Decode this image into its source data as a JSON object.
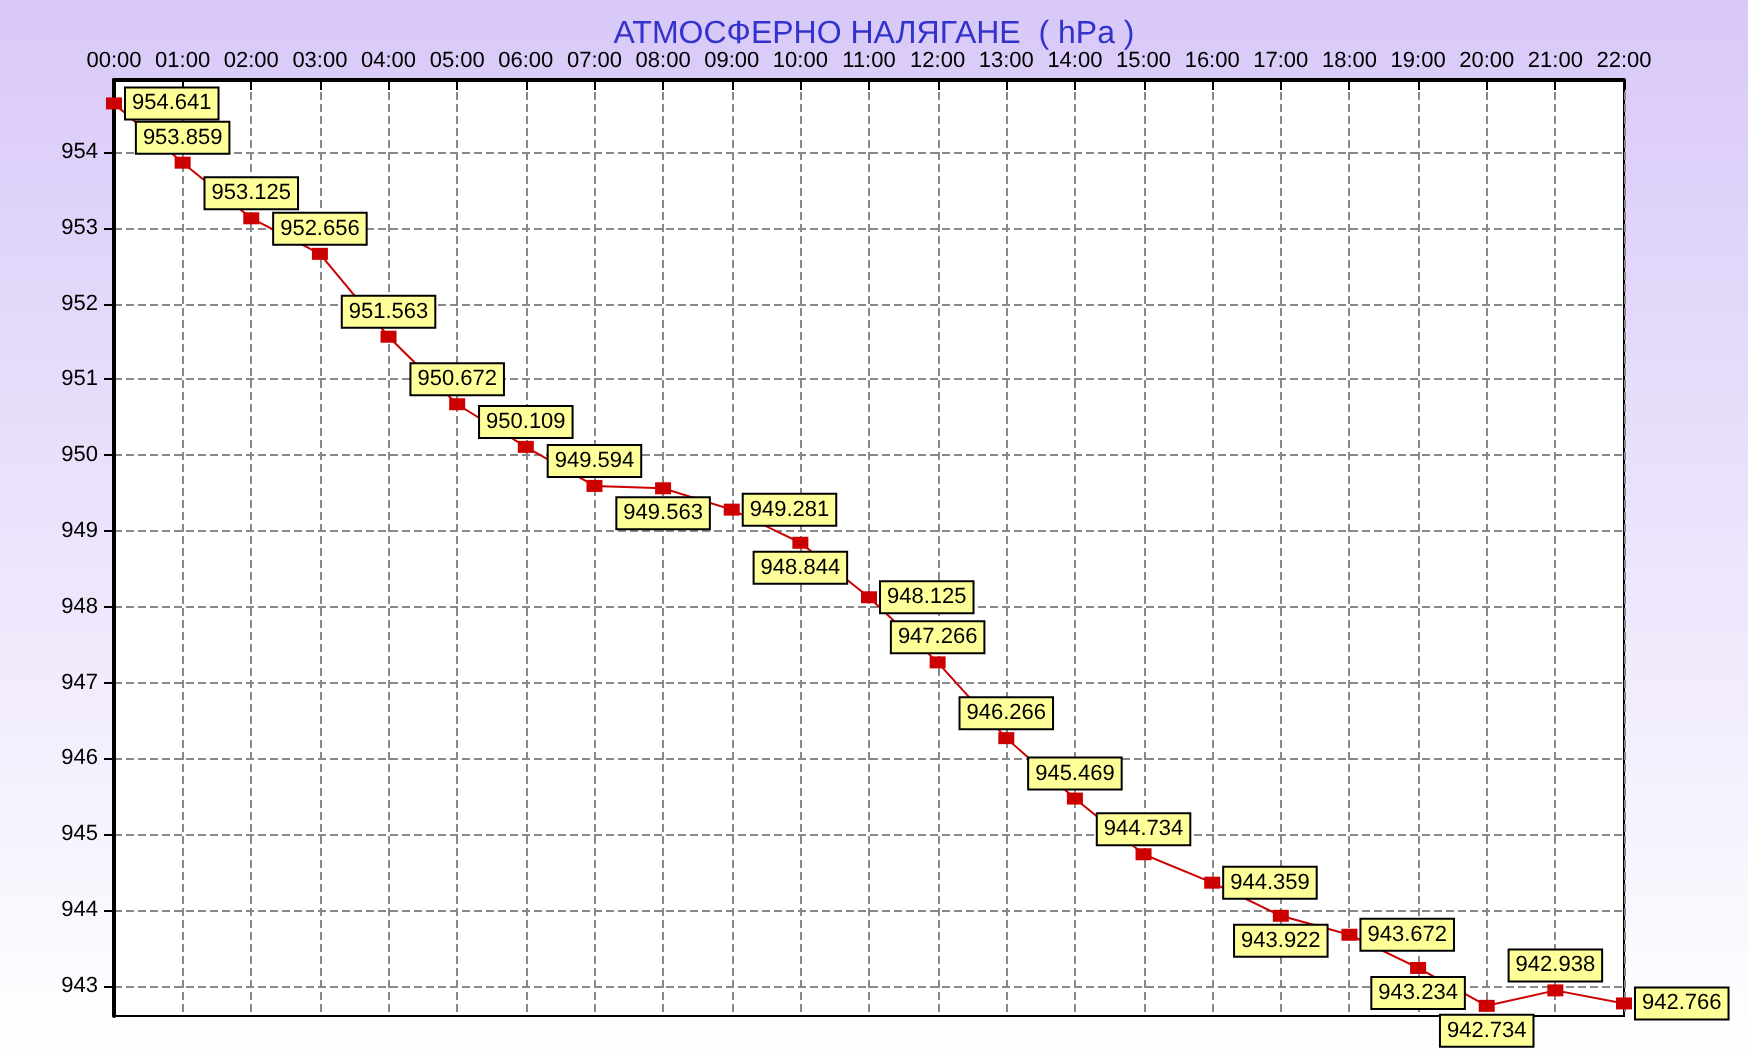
{
  "chart_data": {
    "type": "line",
    "title": "АТМОСФЕРНО НАЛЯГАНЕ  ( hPa )",
    "x": [
      0,
      1,
      2,
      3,
      4,
      5,
      6,
      7,
      8,
      9,
      10,
      11,
      12,
      13,
      14,
      15,
      16,
      17,
      18,
      19,
      20,
      21,
      22
    ],
    "series": [
      {
        "color": "#cc0000",
        "values": [
          954.641,
          953.859,
          953.125,
          952.656,
          951.563,
          950.672,
          950.109,
          949.594,
          949.563,
          949.281,
          948.844,
          948.125,
          947.266,
          946.266,
          945.469,
          944.734,
          944.359,
          943.922,
          943.672,
          943.234,
          942.734,
          942.938,
          942.766
        ]
      }
    ],
    "xlim": [
      0,
      22
    ],
    "xticks": [
      {
        "value": 0,
        "label": "00:00"
      },
      {
        "value": 1,
        "label": "01:00"
      },
      {
        "value": 2,
        "label": "02:00"
      },
      {
        "value": 3,
        "label": "03:00"
      },
      {
        "value": 4,
        "label": "04:00"
      },
      {
        "value": 5,
        "label": "05:00"
      },
      {
        "value": 6,
        "label": "06:00"
      },
      {
        "value": 7,
        "label": "07:00"
      },
      {
        "value": 8,
        "label": "08:00"
      },
      {
        "value": 9,
        "label": "09:00"
      },
      {
        "value": 10,
        "label": "10:00"
      },
      {
        "value": 11,
        "label": "11:00"
      },
      {
        "value": 12,
        "label": "12:00"
      },
      {
        "value": 13,
        "label": "13:00"
      },
      {
        "value": 14,
        "label": "14:00"
      },
      {
        "value": 15,
        "label": "15:00"
      },
      {
        "value": 16,
        "label": "16:00"
      },
      {
        "value": 17,
        "label": "17:00"
      },
      {
        "value": 18,
        "label": "18:00"
      },
      {
        "value": 19,
        "label": "19:00"
      },
      {
        "value": 20,
        "label": "20:00"
      },
      {
        "value": 21,
        "label": "21:00"
      },
      {
        "value": 22,
        "label": "22:00"
      }
    ],
    "ylim": [
      942.6,
      954.95
    ],
    "yticks": [
      943,
      944,
      945,
      946,
      947,
      948,
      949,
      950,
      951,
      952,
      953,
      954
    ],
    "grid": true,
    "marker": "square",
    "line_style": "solid",
    "data_labels": true
  }
}
